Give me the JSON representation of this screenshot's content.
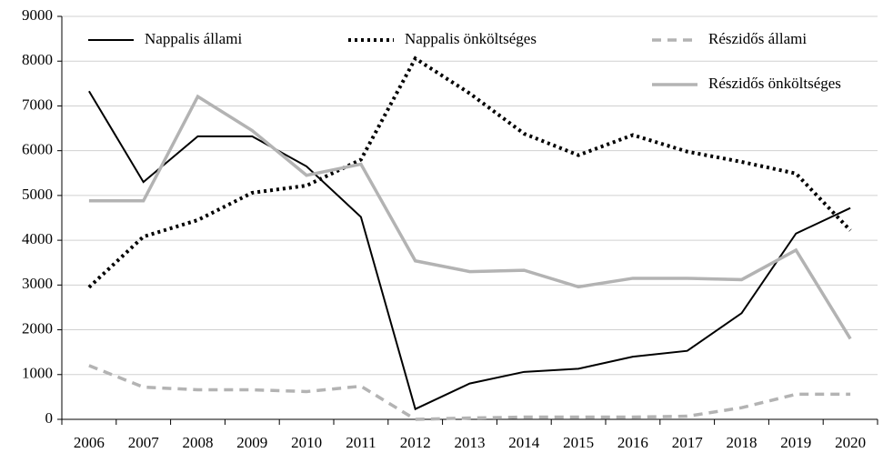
{
  "chart_data": {
    "type": "line",
    "categories": [
      "2006",
      "2007",
      "2008",
      "2009",
      "2010",
      "2011",
      "2012",
      "2013",
      "2014",
      "2015",
      "2016",
      "2017",
      "2018",
      "2019",
      "2020"
    ],
    "series": [
      {
        "name": "Nappalis állami",
        "color": "#000000",
        "dash": "solid",
        "values": [
          7330,
          5300,
          6320,
          6320,
          5650,
          4520,
          230,
          800,
          1060,
          1130,
          1400,
          1530,
          2370,
          4150,
          4720
        ]
      },
      {
        "name": "Nappalis önköltséges",
        "color": "#000000",
        "dash": "dotted",
        "values": [
          2950,
          4080,
          4450,
          5060,
          5220,
          5800,
          8060,
          7280,
          6380,
          5900,
          6350,
          5980,
          5750,
          5490,
          4220
        ]
      },
      {
        "name": "Részidős állami",
        "color": "#b3b3b3",
        "dash": "dashed",
        "values": [
          1200,
          720,
          660,
          660,
          620,
          740,
          0,
          30,
          50,
          50,
          50,
          70,
          260,
          560,
          560
        ]
      },
      {
        "name": "Részidős önköltséges",
        "color": "#b3b3b3",
        "dash": "solid",
        "values": [
          4880,
          4880,
          7210,
          6450,
          5450,
          5700,
          3540,
          3300,
          3330,
          2960,
          3150,
          3150,
          3120,
          3780,
          1800
        ]
      }
    ],
    "ylim": [
      0,
      9000
    ],
    "yticks": [
      0,
      1000,
      2000,
      3000,
      4000,
      5000,
      6000,
      7000,
      8000,
      9000
    ],
    "grid": true
  }
}
